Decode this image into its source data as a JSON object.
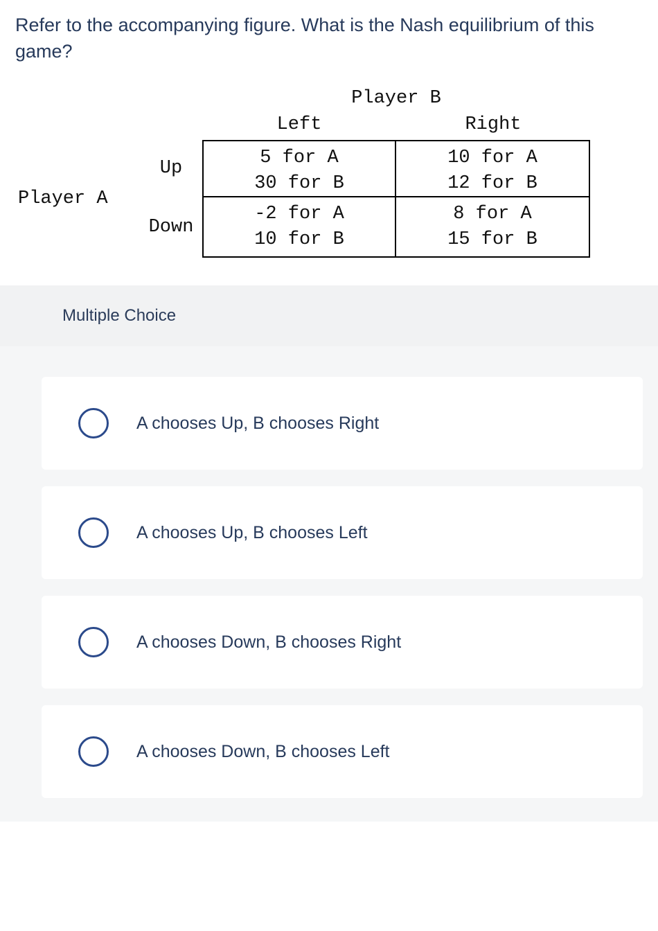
{
  "question": "Refer to the accompanying figure. What is the Nash equilibrium of this game?",
  "figure": {
    "playerA": "Player A",
    "playerB": "Player B",
    "cols": {
      "left": "Left",
      "right": "Right"
    },
    "rows": {
      "up": "Up",
      "down": "Down"
    },
    "cells": {
      "up_left": {
        "a": "5 for A",
        "b": "30 for B"
      },
      "up_right": {
        "a": "10 for A",
        "b": "12 for B"
      },
      "down_left": {
        "a": "-2 for A",
        "b": "10 for B"
      },
      "down_right": {
        "a": "8 for A",
        "b": "15 for B"
      }
    },
    "font_family": "monospace",
    "font_size_pt": 20,
    "border_color": "#000000",
    "text_color": "#111111"
  },
  "mc_label": "Multiple Choice",
  "choices": [
    "A chooses Up, B chooses Right",
    "A chooses Up, B chooses Left",
    "A chooses Down, B chooses Right",
    "A chooses Down, B chooses Left"
  ],
  "colors": {
    "page_bg": "#ffffff",
    "panel_bg": "#f1f2f3",
    "choices_bg": "#f5f6f7",
    "text": "#273a5b",
    "radio_border": "#2b4a8b"
  }
}
